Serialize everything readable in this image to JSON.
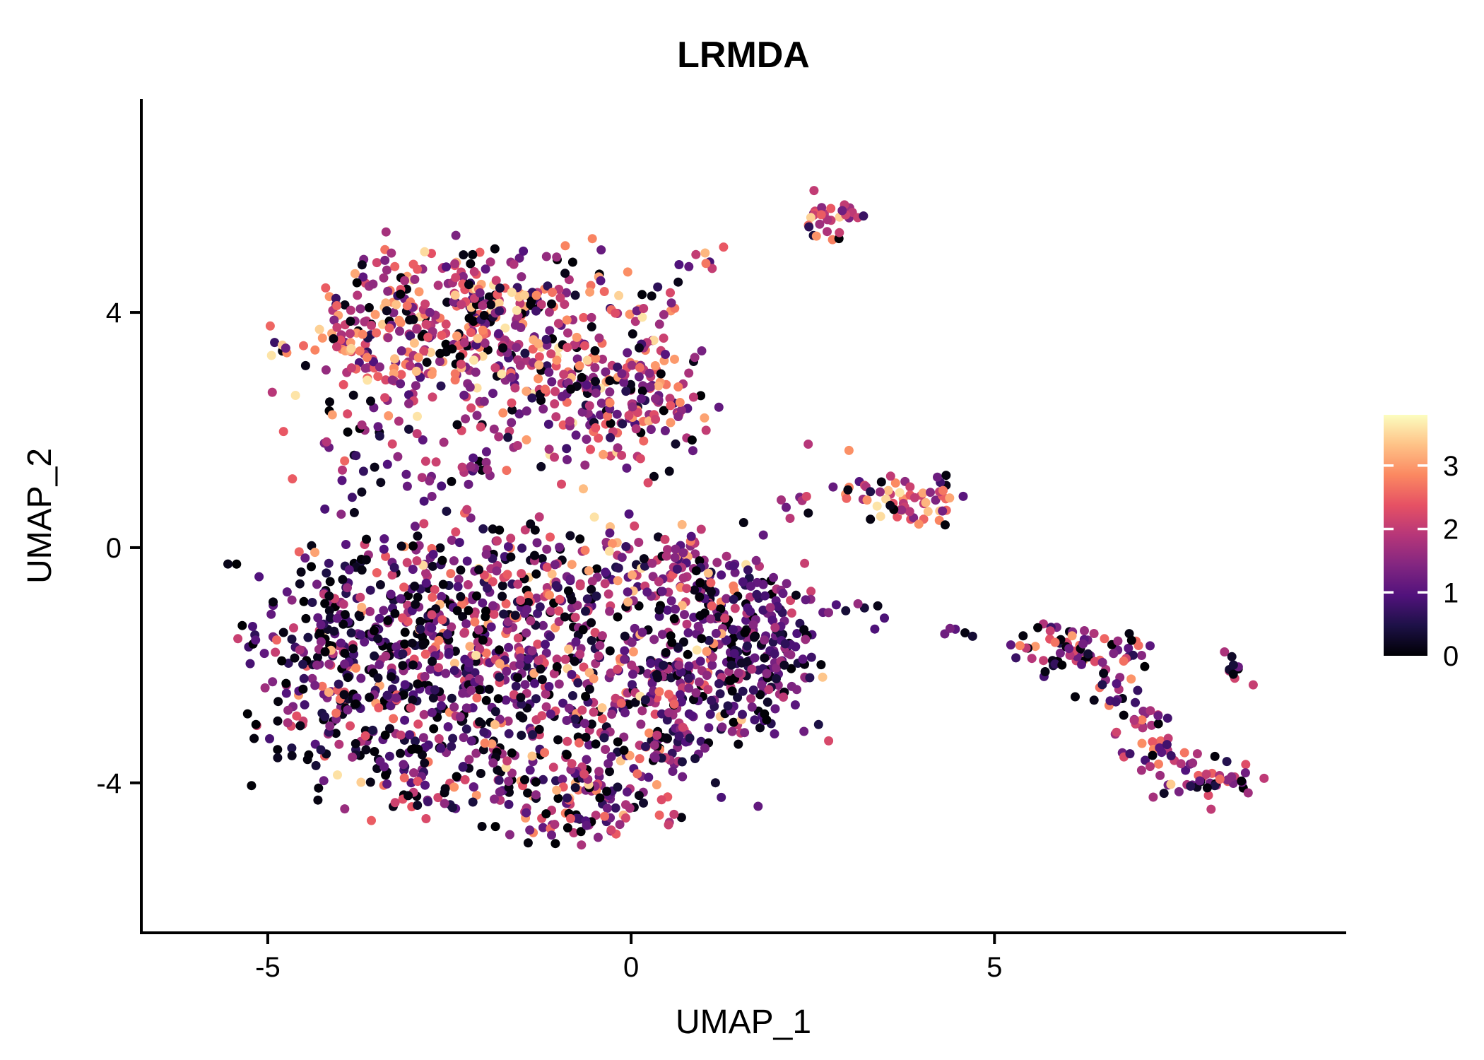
{
  "title": "LRMDA",
  "axes": {
    "x": {
      "label": "UMAP_1",
      "ticks": [
        -5,
        0,
        5
      ]
    },
    "y": {
      "label": "UMAP_2",
      "ticks": [
        -4,
        0,
        4
      ]
    }
  },
  "colorbar": {
    "ticks": [
      3,
      2,
      1,
      0
    ],
    "min": 0,
    "max": 3.8,
    "stops": [
      "#000004",
      "#1D1147",
      "#51127C",
      "#822681",
      "#B63679",
      "#E65164",
      "#FB8861",
      "#FEC287",
      "#FCFDBF"
    ]
  },
  "chart_data": {
    "type": "scatter",
    "title": "LRMDA",
    "xlabel": "UMAP_1",
    "ylabel": "UMAP_2",
    "xlim": [
      -6.74,
      9.84
    ],
    "ylim": [
      -6.55,
      7.63
    ],
    "color_scale": "magma",
    "value_range": [
      0,
      3.8
    ],
    "seed": 42,
    "point_clusters": [
      {
        "name": "upper-blob-left",
        "shape": "gauss",
        "n": 220,
        "cx": -3.3,
        "cy": 3.4,
        "sx": 0.85,
        "sy": 0.75,
        "v": {
          "p0": 0.12,
          "mean": 1.9,
          "sd": 0.85,
          "phi": 0.05
        }
      },
      {
        "name": "upper-blob-top",
        "shape": "gauss",
        "n": 210,
        "cx": -1.8,
        "cy": 4.1,
        "sx": 0.95,
        "sy": 0.6,
        "v": {
          "p0": 0.12,
          "mean": 1.9,
          "sd": 0.85,
          "phi": 0.05
        }
      },
      {
        "name": "upper-blob-mid",
        "shape": "gauss",
        "n": 150,
        "cx": -1.1,
        "cy": 3.0,
        "sx": 0.75,
        "sy": 0.65,
        "v": {
          "p0": 0.12,
          "mean": 1.9,
          "sd": 0.85,
          "phi": 0.05
        }
      },
      {
        "name": "upper-blob-right-low",
        "shape": "gauss",
        "n": 90,
        "cx": -0.25,
        "cy": 2.3,
        "sx": 0.55,
        "sy": 0.6,
        "v": {
          "p0": 0.12,
          "mean": 1.8,
          "sd": 0.85,
          "phi": 0.04
        }
      },
      {
        "name": "upper-blob-right-edge",
        "shape": "gauss",
        "n": 70,
        "cx": 0.35,
        "cy": 2.7,
        "sx": 0.4,
        "sy": 0.75,
        "v": {
          "p0": 0.12,
          "mean": 1.9,
          "sd": 0.85,
          "phi": 0.05
        }
      },
      {
        "name": "upper-trail-to-top",
        "shape": "line",
        "n": 12,
        "x1": 0.3,
        "y1": 4.2,
        "x2": 1.05,
        "y2": 5.1,
        "jitter": 0.12,
        "v": {
          "p0": 0.1,
          "mean": 1.8,
          "sd": 0.8
        }
      },
      {
        "name": "top-small-cluster",
        "shape": "gauss",
        "n": 30,
        "cx": 2.75,
        "cy": 5.65,
        "sx": 0.22,
        "sy": 0.22,
        "v": {
          "p0": 0.08,
          "mean": 2.0,
          "sd": 0.7,
          "phi": 0.06
        }
      },
      {
        "name": "left-bridge",
        "shape": "gauss",
        "n": 55,
        "cx": -2.9,
        "cy": 1.35,
        "sx": 1.05,
        "sy": 0.45,
        "v": {
          "p0": 0.15,
          "mean": 1.4,
          "sd": 0.8
        }
      },
      {
        "name": "lower-left-dense",
        "shape": "gauss",
        "n": 270,
        "cx": -3.9,
        "cy": -2.0,
        "sx": 0.75,
        "sy": 0.95,
        "v": {
          "p0": 0.25,
          "mean": 1.0,
          "sd": 0.75,
          "phi": 0.02
        }
      },
      {
        "name": "lower-upper-left",
        "shape": "gauss",
        "n": 250,
        "cx": -2.5,
        "cy": -1.1,
        "sx": 0.95,
        "sy": 0.8,
        "v": {
          "p0": 0.18,
          "mean": 1.3,
          "sd": 0.8,
          "phi": 0.02
        }
      },
      {
        "name": "lower-center",
        "shape": "gauss",
        "n": 250,
        "cx": -1.3,
        "cy": -2.3,
        "sx": 0.95,
        "sy": 0.95,
        "v": {
          "p0": 0.15,
          "mean": 1.4,
          "sd": 0.8,
          "phi": 0.03
        }
      },
      {
        "name": "lower-bottom-left",
        "shape": "gauss",
        "n": 150,
        "cx": -2.7,
        "cy": -3.3,
        "sx": 0.8,
        "sy": 0.65,
        "v": {
          "p0": 0.2,
          "mean": 1.2,
          "sd": 0.75,
          "phi": 0.02
        }
      },
      {
        "name": "lower-bottom-tip",
        "shape": "gauss",
        "n": 120,
        "cx": -0.9,
        "cy": -4.3,
        "sx": 0.8,
        "sy": 0.45,
        "v": {
          "p0": 0.15,
          "mean": 1.5,
          "sd": 0.8,
          "phi": 0.03
        }
      },
      {
        "name": "lower-mid-right",
        "shape": "gauss",
        "n": 190,
        "cx": 0.3,
        "cy": -2.7,
        "sx": 0.8,
        "sy": 0.85,
        "v": {
          "p0": 0.12,
          "mean": 1.4,
          "sd": 0.8,
          "phi": 0.03
        }
      },
      {
        "name": "lower-right-dark-lobe",
        "shape": "gauss",
        "n": 220,
        "cx": 1.45,
        "cy": -1.8,
        "sx": 0.65,
        "sy": 0.75,
        "v": {
          "p0": 0.15,
          "mean": 1.0,
          "sd": 0.55,
          "phi": 0.02
        }
      },
      {
        "name": "lower-top-band",
        "shape": "gauss",
        "n": 150,
        "cx": -0.4,
        "cy": -0.4,
        "sx": 1.15,
        "sy": 0.5,
        "v": {
          "p0": 0.13,
          "mean": 1.5,
          "sd": 0.8,
          "phi": 0.03
        }
      },
      {
        "name": "lower-top-right",
        "shape": "gauss",
        "n": 60,
        "cx": 0.9,
        "cy": -0.6,
        "sx": 0.5,
        "sy": 0.4,
        "v": {
          "p0": 0.1,
          "mean": 1.5,
          "sd": 0.7,
          "phi": 0.03
        }
      },
      {
        "name": "lower-right-tip",
        "shape": "gauss",
        "n": 50,
        "cx": 1.95,
        "cy": -1.4,
        "sx": 0.3,
        "sy": 0.5,
        "v": {
          "p0": 0.12,
          "mean": 1.1,
          "sd": 0.6
        }
      },
      {
        "name": "mid-sparse",
        "shape": "gauss",
        "n": 10,
        "cx": 2.2,
        "cy": 1.0,
        "sx": 0.4,
        "sy": 0.4,
        "v": {
          "p0": 0.2,
          "mean": 1.5,
          "sd": 0.8
        }
      },
      {
        "name": "right-mid-cluster",
        "shape": "gauss",
        "n": 55,
        "cx": 3.95,
        "cy": 0.8,
        "sx": 0.45,
        "sy": 0.28,
        "v": {
          "p0": 0.12,
          "mean": 2.1,
          "sd": 0.8,
          "phi": 0.12
        }
      },
      {
        "name": "right-mid-companion",
        "shape": "gauss",
        "n": 8,
        "cx": 3.1,
        "cy": 1.0,
        "sx": 0.2,
        "sy": 0.15,
        "v": {
          "p0": 0.1,
          "mean": 1.8,
          "sd": 0.7
        }
      },
      {
        "name": "trail-to-right",
        "shape": "line",
        "n": 13,
        "x1": 2.4,
        "y1": -0.85,
        "x2": 5.3,
        "y2": -1.7,
        "jitter": 0.13,
        "v": {
          "p0": 0.2,
          "mean": 0.9,
          "sd": 0.5
        }
      },
      {
        "name": "right-band",
        "shape": "gauss",
        "n": 75,
        "cx": 6.15,
        "cy": -1.75,
        "sx": 0.5,
        "sy": 0.22,
        "v": {
          "p0": 0.15,
          "mean": 1.5,
          "sd": 0.9,
          "phi": 0.04
        }
      },
      {
        "name": "right-diagonal",
        "shape": "line",
        "n": 55,
        "x1": 6.4,
        "y1": -2.1,
        "x2": 7.5,
        "y2": -3.7,
        "jitter": 0.22,
        "v": {
          "p0": 0.15,
          "mean": 1.6,
          "sd": 0.9,
          "phi": 0.04
        }
      },
      {
        "name": "right-bottom-hook",
        "shape": "gauss",
        "n": 45,
        "cx": 7.9,
        "cy": -3.95,
        "sx": 0.38,
        "sy": 0.25,
        "v": {
          "p0": 0.12,
          "mean": 1.8,
          "sd": 0.9,
          "phi": 0.05
        }
      },
      {
        "name": "right-far-clump",
        "shape": "gauss",
        "n": 10,
        "cx": 8.3,
        "cy": -2.05,
        "sx": 0.16,
        "sy": 0.16,
        "v": {
          "p0": 0.2,
          "mean": 1.2,
          "sd": 0.7
        }
      }
    ]
  }
}
